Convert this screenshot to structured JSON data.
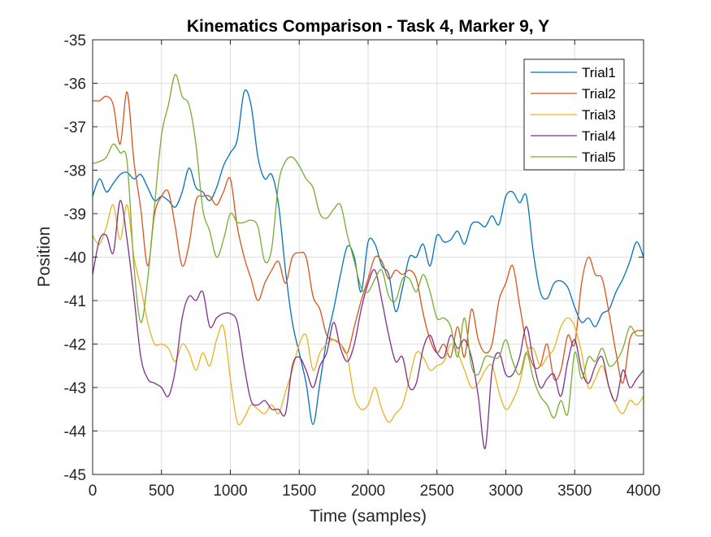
{
  "chart_data": {
    "type": "line",
    "title": "Kinematics Comparison - Task 4, Marker 9, Y",
    "xlabel": "Time (samples)",
    "ylabel": "Position",
    "xlim": [
      0,
      4000
    ],
    "ylim": [
      -45,
      -35
    ],
    "x_ticks": [
      0,
      500,
      1000,
      1500,
      2000,
      2500,
      3000,
      3500,
      4000
    ],
    "x_tick_labels": [
      "0",
      "500",
      "1000",
      "1500",
      "2000",
      "2500",
      "3000",
      "3500",
      "4000"
    ],
    "y_ticks": [
      -35,
      -36,
      -37,
      -38,
      -39,
      -40,
      -41,
      -42,
      -43,
      -44,
      -45
    ],
    "y_tick_labels": [
      "-35",
      "-36",
      "-37",
      "-38",
      "-39",
      "-40",
      "-41",
      "-42",
      "-43",
      "-44",
      "-45"
    ],
    "grid": true,
    "legend_position": "top-right",
    "colors": [
      "#0072BD",
      "#D95319",
      "#EDB120",
      "#7E2F8E",
      "#77AC30"
    ],
    "series": [
      {
        "name": "Trial1",
        "x": [
          0,
          50,
          100,
          150,
          200,
          250,
          300,
          350,
          400,
          450,
          500,
          550,
          600,
          650,
          700,
          750,
          800,
          850,
          900,
          950,
          1000,
          1050,
          1100,
          1150,
          1200,
          1250,
          1300,
          1350,
          1400,
          1450,
          1500,
          1550,
          1600,
          1650,
          1700,
          1750,
          1800,
          1850,
          1900,
          1950,
          2000,
          2050,
          2100,
          2150,
          2200,
          2250,
          2300,
          2350,
          2400,
          2450,
          2500,
          2550,
          2600,
          2650,
          2700,
          2750,
          2800,
          2850,
          2900,
          2950,
          3000,
          3050,
          3100,
          3150,
          3200,
          3250,
          3300,
          3350,
          3400,
          3450,
          3500,
          3550,
          3600,
          3650,
          3700,
          3750,
          3800,
          3850,
          3900,
          3950,
          4000
        ],
        "values": [
          -38.6,
          -38.2,
          -38.5,
          -38.3,
          -38.1,
          -38.05,
          -38.2,
          -38.1,
          -38.4,
          -38.7,
          -38.6,
          -38.7,
          -38.85,
          -38.5,
          -37.95,
          -38.4,
          -38.5,
          -38.7,
          -38.4,
          -37.9,
          -37.6,
          -37.3,
          -36.2,
          -36.5,
          -37.7,
          -38.2,
          -38.1,
          -38.8,
          -40.3,
          -41.5,
          -42.2,
          -42.9,
          -43.85,
          -42.9,
          -41.9,
          -41.2,
          -40.4,
          -39.75,
          -40.0,
          -40.8,
          -39.65,
          -39.7,
          -40.2,
          -40.4,
          -41.25,
          -40.7,
          -40.0,
          -40.0,
          -39.7,
          -40.2,
          -39.5,
          -39.65,
          -39.6,
          -39.4,
          -39.7,
          -39.25,
          -39.2,
          -39.3,
          -39.05,
          -39.25,
          -38.6,
          -38.5,
          -38.75,
          -38.6,
          -39.9,
          -40.8,
          -40.95,
          -40.6,
          -40.55,
          -40.7,
          -41.15,
          -41.5,
          -41.4,
          -41.6,
          -41.3,
          -41.2,
          -40.8,
          -40.5,
          -40.1,
          -39.65,
          -40.0
        ]
      },
      {
        "name": "Trial2",
        "x": [
          0,
          50,
          100,
          150,
          200,
          250,
          300,
          350,
          400,
          450,
          500,
          550,
          600,
          650,
          700,
          750,
          800,
          850,
          900,
          950,
          1000,
          1050,
          1100,
          1150,
          1200,
          1250,
          1300,
          1350,
          1400,
          1450,
          1500,
          1550,
          1600,
          1650,
          1700,
          1750,
          1800,
          1850,
          1900,
          1950,
          2000,
          2050,
          2100,
          2150,
          2200,
          2250,
          2300,
          2350,
          2400,
          2450,
          2500,
          2550,
          2600,
          2650,
          2700,
          2750,
          2800,
          2850,
          2900,
          2950,
          3000,
          3050,
          3100,
          3150,
          3200,
          3250,
          3300,
          3350,
          3400,
          3450,
          3500,
          3550,
          3600,
          3650,
          3700,
          3750,
          3800,
          3850,
          3900,
          3950,
          4000
        ],
        "values": [
          -36.4,
          -36.4,
          -36.3,
          -36.5,
          -37.4,
          -36.2,
          -37.8,
          -38.9,
          -40.2,
          -39.0,
          -38.6,
          -38.5,
          -39.3,
          -40.2,
          -39.7,
          -38.7,
          -38.6,
          -38.6,
          -38.8,
          -38.5,
          -38.2,
          -39.3,
          -40.0,
          -40.5,
          -41.0,
          -40.6,
          -40.3,
          -40.1,
          -40.6,
          -40.0,
          -39.9,
          -40.0,
          -40.9,
          -41.2,
          -41.8,
          -41.9,
          -42.0,
          -42.2,
          -41.6,
          -41.0,
          -40.5,
          -40.0,
          -40.1,
          -40.5,
          -40.3,
          -40.4,
          -40.3,
          -40.5,
          -41.3,
          -41.9,
          -42.2,
          -42.0,
          -42.3,
          -41.6,
          -42.3,
          -41.2,
          -41.9,
          -42.2,
          -42.0,
          -41.0,
          -40.6,
          -40.2,
          -41.1,
          -42.0,
          -42.5,
          -42.5,
          -42.0,
          -42.8,
          -42.6,
          -41.8,
          -42.0,
          -40.6,
          -40.0,
          -40.4,
          -40.5,
          -41.3,
          -42.2,
          -42.9,
          -41.9,
          -41.7,
          -41.7
        ]
      },
      {
        "name": "Trial3",
        "x": [
          0,
          50,
          100,
          150,
          200,
          250,
          300,
          350,
          400,
          450,
          500,
          550,
          600,
          650,
          700,
          750,
          800,
          850,
          900,
          950,
          1000,
          1050,
          1100,
          1150,
          1200,
          1250,
          1300,
          1350,
          1400,
          1450,
          1500,
          1550,
          1600,
          1650,
          1700,
          1750,
          1800,
          1850,
          1900,
          1950,
          2000,
          2050,
          2100,
          2150,
          2200,
          2250,
          2300,
          2350,
          2400,
          2450,
          2500,
          2550,
          2600,
          2650,
          2700,
          2750,
          2800,
          2850,
          2900,
          2950,
          3000,
          3050,
          3100,
          3150,
          3200,
          3250,
          3300,
          3350,
          3400,
          3450,
          3500,
          3550,
          3600,
          3650,
          3700,
          3750,
          3800,
          3850,
          3900,
          3950,
          4000
        ],
        "values": [
          -39.5,
          -39.7,
          -39.3,
          -38.8,
          -39.6,
          -38.8,
          -40.0,
          -40.7,
          -41.5,
          -42.0,
          -42.0,
          -42.1,
          -42.4,
          -42.0,
          -42.2,
          -42.6,
          -42.2,
          -42.5,
          -41.9,
          -41.6,
          -42.8,
          -43.8,
          -43.7,
          -43.4,
          -43.5,
          -43.6,
          -43.4,
          -43.6,
          -43.1,
          -42.6,
          -42.0,
          -41.8,
          -42.6,
          -42.2,
          -42.0,
          -41.9,
          -42.0,
          -42.3,
          -43.2,
          -43.5,
          -43.4,
          -43.0,
          -43.5,
          -43.8,
          -43.6,
          -43.4,
          -42.8,
          -42.2,
          -42.3,
          -42.6,
          -42.5,
          -42.4,
          -42.0,
          -42.2,
          -42.6,
          -43.0,
          -42.9,
          -42.6,
          -42.5,
          -43.1,
          -43.5,
          -43.3,
          -42.9,
          -42.2,
          -42.1,
          -42.5,
          -42.3,
          -42.1,
          -41.6,
          -41.4,
          -41.6,
          -42.2,
          -43.0,
          -42.8,
          -42.5,
          -43.0,
          -43.4,
          -43.6,
          -43.3,
          -43.4,
          -43.2
        ]
      },
      {
        "name": "Trial4",
        "x": [
          0,
          50,
          100,
          150,
          200,
          250,
          300,
          350,
          400,
          450,
          500,
          550,
          600,
          650,
          700,
          750,
          800,
          850,
          900,
          950,
          1000,
          1050,
          1100,
          1150,
          1200,
          1250,
          1300,
          1350,
          1400,
          1450,
          1500,
          1550,
          1600,
          1650,
          1700,
          1750,
          1800,
          1850,
          1900,
          1950,
          2000,
          2050,
          2100,
          2150,
          2200,
          2250,
          2300,
          2350,
          2400,
          2450,
          2500,
          2550,
          2600,
          2650,
          2700,
          2750,
          2800,
          2850,
          2900,
          2950,
          3000,
          3050,
          3100,
          3150,
          3200,
          3250,
          3300,
          3350,
          3400,
          3450,
          3500,
          3550,
          3600,
          3650,
          3700,
          3750,
          3800,
          3850,
          3900,
          3950,
          4000
        ],
        "values": [
          -40.4,
          -39.6,
          -39.5,
          -39.9,
          -38.7,
          -39.6,
          -40.9,
          -42.3,
          -42.8,
          -42.9,
          -43.0,
          -43.2,
          -42.6,
          -41.4,
          -40.9,
          -41.0,
          -40.8,
          -41.6,
          -41.4,
          -41.3,
          -41.3,
          -41.5,
          -42.5,
          -43.3,
          -43.4,
          -43.3,
          -43.5,
          -43.5,
          -43.6,
          -42.5,
          -42.3,
          -42.6,
          -43.0,
          -42.5,
          -42.2,
          -41.5,
          -42.1,
          -42.4,
          -42.0,
          -41.2,
          -40.6,
          -40.3,
          -41.0,
          -41.8,
          -42.4,
          -42.3,
          -43.0,
          -42.9,
          -42.1,
          -41.8,
          -42.2,
          -42.3,
          -41.8,
          -42.1,
          -41.9,
          -42.3,
          -43.2,
          -44.4,
          -42.6,
          -42.2,
          -42.7,
          -42.7,
          -42.3,
          -41.6,
          -42.4,
          -43.0,
          -42.8,
          -42.7,
          -43.2,
          -42.4,
          -41.9,
          -42.6,
          -42.9,
          -42.5,
          -42.3,
          -43.0,
          -43.3,
          -42.6,
          -43.0,
          -42.8,
          -42.6
        ]
      },
      {
        "name": "Trial5",
        "x": [
          0,
          50,
          100,
          150,
          200,
          250,
          300,
          350,
          400,
          450,
          500,
          550,
          600,
          650,
          700,
          750,
          800,
          850,
          900,
          950,
          1000,
          1050,
          1100,
          1150,
          1200,
          1250,
          1300,
          1350,
          1400,
          1450,
          1500,
          1550,
          1600,
          1650,
          1700,
          1750,
          1800,
          1850,
          1900,
          1950,
          2000,
          2050,
          2100,
          2150,
          2200,
          2250,
          2300,
          2350,
          2400,
          2450,
          2500,
          2550,
          2600,
          2650,
          2700,
          2750,
          2800,
          2850,
          2900,
          2950,
          3000,
          3050,
          3100,
          3150,
          3200,
          3250,
          3300,
          3350,
          3400,
          3450,
          3500,
          3550,
          3600,
          3650,
          3700,
          3750,
          3800,
          3850,
          3900,
          3950,
          4000
        ],
        "values": [
          -37.85,
          -37.8,
          -37.7,
          -37.4,
          -37.6,
          -37.8,
          -40.2,
          -41.5,
          -40.5,
          -38.8,
          -37.2,
          -36.5,
          -35.8,
          -36.3,
          -36.5,
          -37.4,
          -38.9,
          -39.4,
          -40.0,
          -39.6,
          -39.0,
          -39.2,
          -39.2,
          -39.15,
          -39.3,
          -40.1,
          -39.8,
          -38.3,
          -37.8,
          -37.7,
          -37.9,
          -38.2,
          -38.4,
          -39.0,
          -39.1,
          -38.9,
          -38.8,
          -39.5,
          -40.1,
          -40.7,
          -40.8,
          -40.5,
          -40.3,
          -40.9,
          -41.0,
          -40.5,
          -40.5,
          -40.8,
          -40.4,
          -40.8,
          -41.4,
          -41.4,
          -41.6,
          -42.3,
          -41.4,
          -42.5,
          -42.7,
          -42.3,
          -42.3,
          -42.3,
          -41.9,
          -42.4,
          -42.7,
          -42.2,
          -42.8,
          -43.2,
          -43.4,
          -43.7,
          -43.3,
          -43.6,
          -42.2,
          -42.8,
          -42.3,
          -42.4,
          -42.1,
          -42.5,
          -42.4,
          -42.1,
          -41.6,
          -41.8,
          -41.8
        ]
      }
    ]
  }
}
